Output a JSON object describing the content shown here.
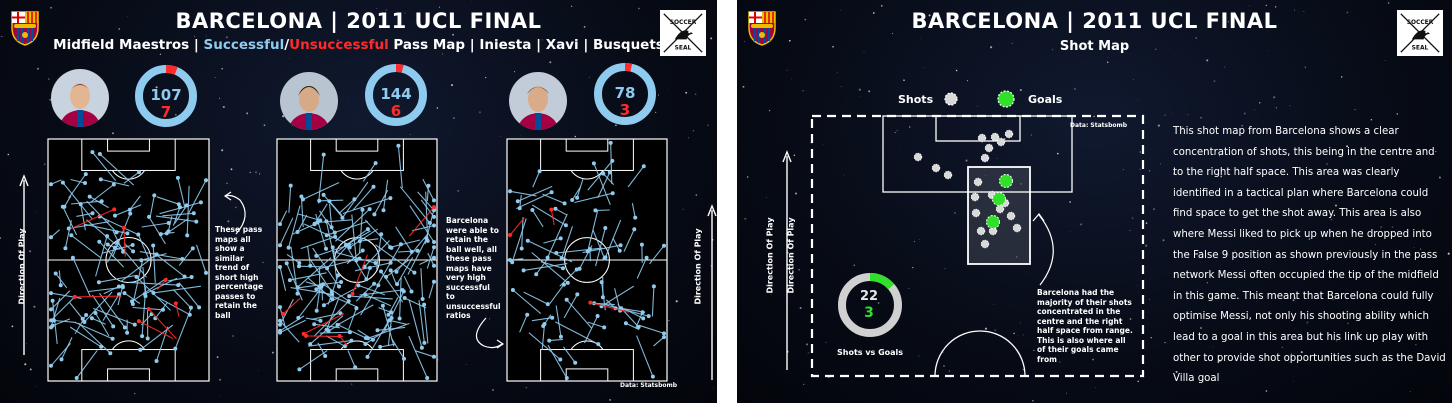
{
  "colors": {
    "successful": "#8fcbee",
    "unsuccessful": "#ff2a2a",
    "goal": "#31e02a",
    "shot": "#d9d9d9",
    "background": "#060a16"
  },
  "left_panel": {
    "title": "BARCELONA | 2011 UCL FINAL",
    "subtitle_prefix": "Midfield Maestros | ",
    "subtitle_successful": "Successful",
    "subtitle_slash": "/",
    "subtitle_unsuccessful": "Unsuccessful",
    "subtitle_suffix": " Pass Map | Iniesta | Xavi | Busquets",
    "players": [
      {
        "name": "Iniesta",
        "successful": 107,
        "unsuccessful": 7
      },
      {
        "name": "Xavi",
        "successful": 144,
        "unsuccessful": 6
      },
      {
        "name": "Busquets",
        "successful": 78,
        "unsuccessful": 3
      }
    ],
    "direction_label": "Direction Of Play",
    "note_1": "These pass maps all show a similar trend of short high percentage passes to retain the ball",
    "note_2": "Barcelona were able to retain the ball well, all these pass maps have very high successful to unsuccessful ratios",
    "attribution": "Data: Statsbomb",
    "logo_text": "SOCCER SEAL"
  },
  "right_panel": {
    "title": "BARCELONA | 2011 UCL FINAL",
    "subtitle": "Shot Map",
    "legend_shots": "Shots",
    "legend_goals": "Goals",
    "direction_label": "Direction Of Play",
    "attribution": "Data: Statsbomb",
    "total_shots": 22,
    "goals": 3,
    "donut_label": "Shots vs Goals",
    "note": "Barcelona had the majority of their shots concentrated in the centre and the right half space from range. This is also where all of their goals came from",
    "paragraph": "This shot map from Barcelona shows a clear concentration of shots, this being in the centre and to the right half space. This area was clearly identified in a tactical plan where Barcelona could find space to get the shot away. This area is also where Messi liked to pick up when he dropped into the False 9 position as shown previously in the pass network Messi often occupied the tip of the midfield in this game. This meant that Barcelona could fully optimise Messi, not only his shooting ability which lead to a goal in this area but his link up play with other to provide shot opportunities such as the David Villa goal",
    "logo_text": "SOCCER SEAL"
  }
}
